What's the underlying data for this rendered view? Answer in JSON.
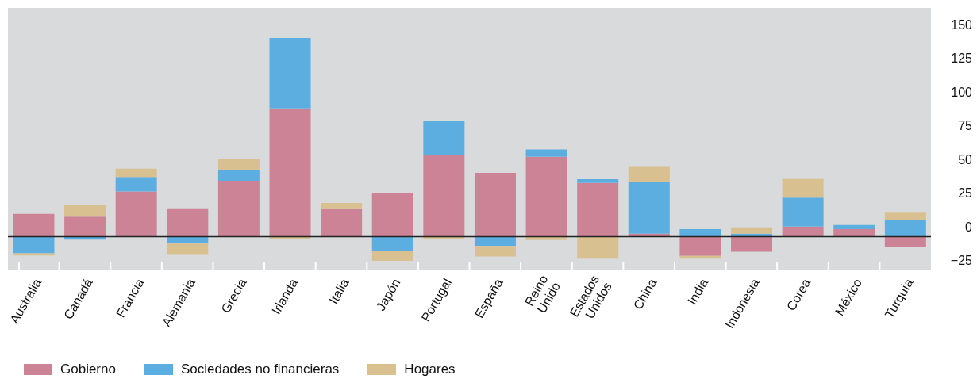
{
  "chart_data": {
    "type": "bar",
    "stacked": true,
    "categories": [
      "Australia",
      "Canadá",
      "Francia",
      "Alemania",
      "Grecia",
      "Irlanda",
      "Italia",
      "Japón",
      "Portugal",
      "España",
      "Reino Unido",
      "Estados Unidos",
      "China",
      "India",
      "Indonesia",
      "Corea",
      "México",
      "Turquía"
    ],
    "series": [
      {
        "name": "Gobierno",
        "color": "#cd8396",
        "values": [
          17,
          14.9,
          33.6,
          21.1,
          41.6,
          95.3,
          21.1,
          32.4,
          60.9,
          47.5,
          59.4,
          39.9,
          2.3,
          -14.2,
          -11.2,
          7.6,
          5.7,
          -7.8
        ]
      },
      {
        "name": "Sociedades no financieras",
        "color": "#5daee0",
        "values": [
          -12.4,
          -2.2,
          10.7,
          -5.1,
          8.2,
          52.3,
          null,
          -10.2,
          24.9,
          -6.9,
          5.5,
          2.8,
          38.3,
          5.7,
          2.3,
          21.5,
          3.0,
          12.2
        ]
      },
      {
        "name": "Hogares",
        "color": "#d8c090",
        "values": [
          -1.6,
          8.4,
          6.2,
          -7.8,
          8,
          -1.6,
          4,
          -7.8,
          -1.6,
          -7.8,
          -2.5,
          -16.3,
          11.9,
          -2.1,
          4.6,
          13.8,
          null,
          5.7
        ]
      }
    ],
    "ylim": [
      -25,
      170
    ],
    "yticks": [
      -25,
      0,
      25,
      50,
      75,
      100,
      125,
      150
    ],
    "ref_lines": [
      {
        "axis": "y",
        "value": 0,
        "color": "#222222"
      }
    ],
    "grid": true,
    "legend": "bottom left"
  }
}
